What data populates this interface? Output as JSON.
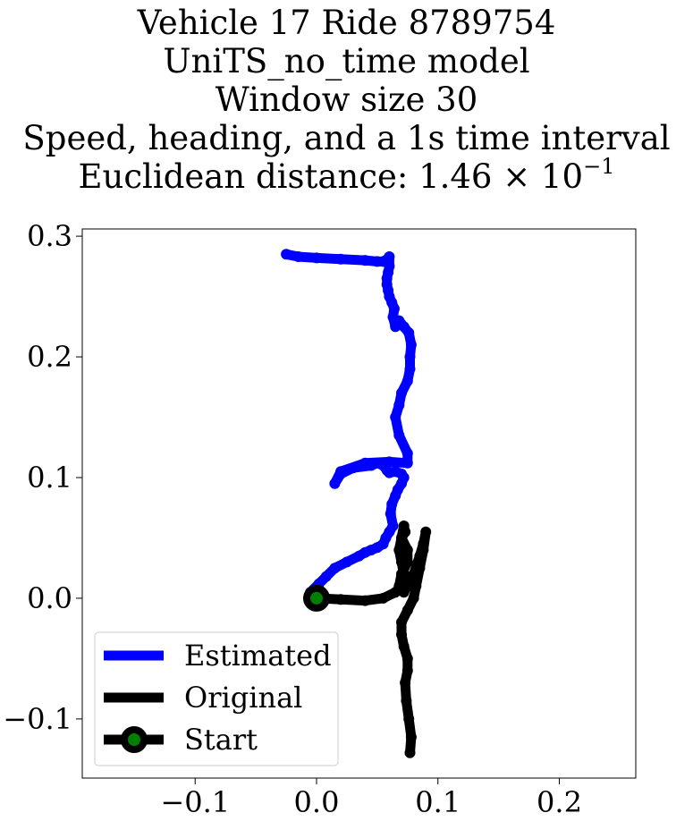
{
  "title_lines": [
    "Vehicle 17 Ride 8789754",
    "UniTS_no_time model",
    "Window size 30",
    "Speed, heading, and a 1s time interval"
  ],
  "title_distance": {
    "prefix": "Euclidean distance: ",
    "mantissa": "1.46",
    "times": "×",
    "base": "10",
    "exponent": "−1"
  },
  "chart_data": {
    "type": "line",
    "title": "Vehicle 17 Ride 8789754 UniTS_no_time model Window size 30 Speed, heading, and a 1s time interval Euclidean distance: 1.46 × 10^-1",
    "xlabel": "",
    "ylabel": "",
    "xlim": [
      -0.193,
      0.263
    ],
    "ylim": [
      -0.149,
      0.306
    ],
    "x_ticks": [
      -0.1,
      0.0,
      0.1,
      0.2
    ],
    "x_tick_labels": [
      "−0.1",
      "0.0",
      "0.1",
      "0.2"
    ],
    "y_ticks": [
      -0.1,
      0.0,
      0.1,
      0.2,
      0.3
    ],
    "y_tick_labels": [
      "−0.1",
      "0.0",
      "0.1",
      "0.2",
      "0.3"
    ],
    "grid": false,
    "legend_position": "lower-left",
    "series": [
      {
        "name": "Estimated",
        "color": "#0000ff",
        "x": [
          -0.005,
          0.002,
          0.008,
          0.015,
          0.025,
          0.035,
          0.04,
          0.045,
          0.05,
          0.055,
          0.057,
          0.06,
          0.063,
          0.061,
          0.062,
          0.065,
          0.067,
          0.07,
          0.072,
          0.07,
          0.065,
          0.06,
          0.058,
          0.055,
          0.05,
          0.045,
          0.03,
          0.02,
          0.015,
          0.02,
          0.04,
          0.06,
          0.075,
          0.075,
          0.068,
          0.065,
          0.068,
          0.07,
          0.075,
          0.077,
          0.077,
          0.078,
          0.076,
          0.072,
          0.068,
          0.065,
          0.063,
          0.064,
          0.062,
          0.06,
          0.059,
          0.058,
          0.058,
          0.059,
          0.06,
          0.06,
          0.057,
          0.055,
          0.05,
          0.04,
          0.02,
          0.0,
          -0.015,
          -0.025
        ],
        "y": [
          0.005,
          0.012,
          0.018,
          0.025,
          0.03,
          0.035,
          0.038,
          0.04,
          0.042,
          0.045,
          0.05,
          0.055,
          0.06,
          0.07,
          0.078,
          0.085,
          0.09,
          0.095,
          0.1,
          0.103,
          0.105,
          0.104,
          0.106,
          0.11,
          0.112,
          0.11,
          0.108,
          0.103,
          0.095,
          0.105,
          0.112,
          0.113,
          0.112,
          0.12,
          0.135,
          0.15,
          0.16,
          0.17,
          0.18,
          0.19,
          0.2,
          0.21,
          0.22,
          0.225,
          0.23,
          0.225,
          0.233,
          0.24,
          0.245,
          0.25,
          0.255,
          0.26,
          0.265,
          0.27,
          0.275,
          0.283,
          0.28,
          0.279,
          0.279,
          0.28,
          0.281,
          0.282,
          0.283,
          0.285
        ]
      },
      {
        "name": "Original",
        "color": "#000000",
        "x": [
          0.0,
          0.02,
          0.04,
          0.055,
          0.065,
          0.07,
          0.072,
          0.07,
          0.068,
          0.07,
          0.073,
          0.072,
          0.07,
          0.075,
          0.075,
          0.07,
          0.068,
          0.072,
          0.08,
          0.085,
          0.088,
          0.09,
          0.088,
          0.085,
          0.082,
          0.08,
          0.075,
          0.07,
          0.07,
          0.072,
          0.075,
          0.075,
          0.073,
          0.074,
          0.076,
          0.078,
          0.077
        ],
        "y": [
          0.0,
          -0.001,
          -0.002,
          0.0,
          0.005,
          0.01,
          0.02,
          0.03,
          0.04,
          0.05,
          0.055,
          0.06,
          0.05,
          0.04,
          0.03,
          0.02,
          0.01,
          0.005,
          0.02,
          0.035,
          0.045,
          0.055,
          0.04,
          0.025,
          0.01,
          0.0,
          -0.01,
          -0.02,
          -0.03,
          -0.04,
          -0.05,
          -0.06,
          -0.07,
          -0.085,
          -0.1,
          -0.115,
          -0.128
        ]
      }
    ],
    "start_marker": {
      "name": "Start",
      "x": 0.0,
      "y": 0.0,
      "edge_color": "#000000",
      "face_color": "#008000"
    }
  }
}
